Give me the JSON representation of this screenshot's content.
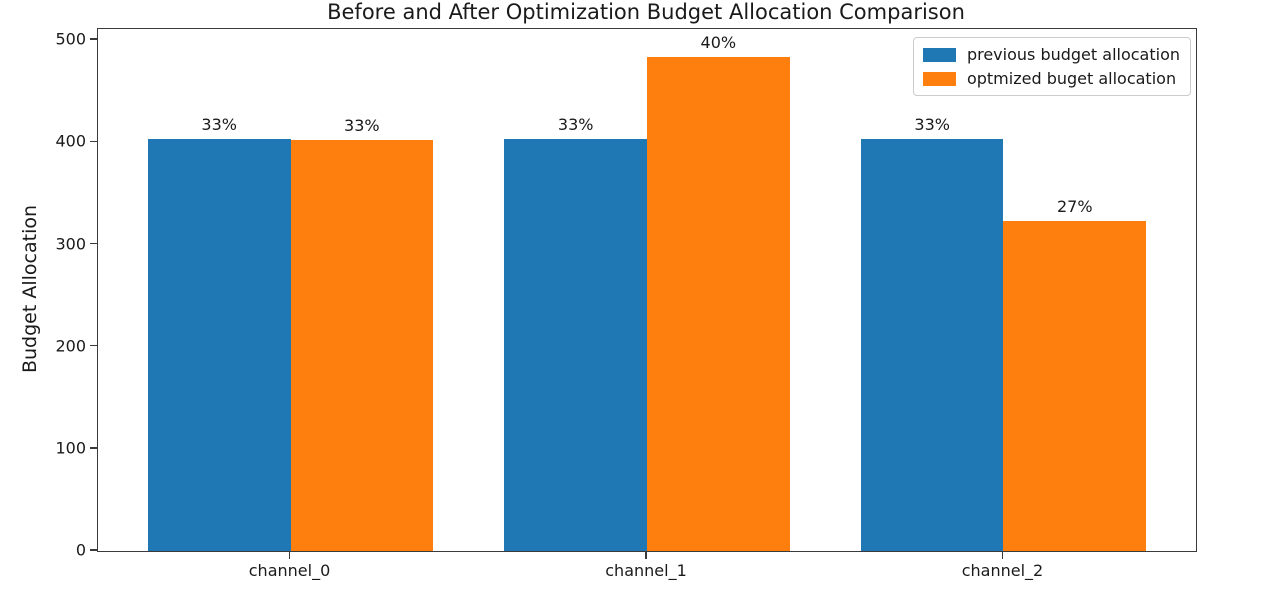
{
  "chart_data": {
    "type": "bar",
    "title": "Before and After Optimization Budget Allocation Comparison",
    "xlabel": "",
    "ylabel": "Budget Allocation",
    "categories": [
      "channel_0",
      "channel_1",
      "channel_2"
    ],
    "series": [
      {
        "name": "previous budget allocation",
        "color": "#1f77b4",
        "values": [
          403,
          403,
          403
        ],
        "bar_labels": [
          "33%",
          "33%",
          "33%"
        ]
      },
      {
        "name": "optmized buget allocation",
        "color": "#ff7f0e",
        "values": [
          402,
          484,
          323
        ],
        "bar_labels": [
          "33%",
          "40%",
          "27%"
        ]
      }
    ],
    "yticks": [
      0,
      100,
      200,
      300,
      400,
      500
    ],
    "ylim": [
      0,
      511
    ],
    "legend_position": "upper right",
    "grid": false
  },
  "colors": {
    "series_blue": "#1f77b4",
    "series_orange": "#ff7f0e",
    "text": "#1a1a1a",
    "spine": "#3a3a3a"
  }
}
